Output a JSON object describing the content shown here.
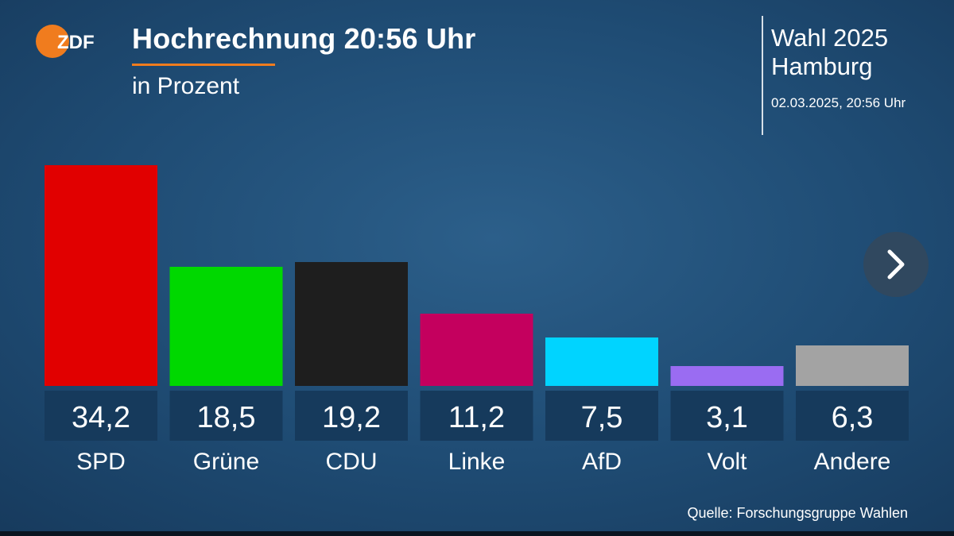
{
  "header": {
    "logo_text": "ZDF",
    "title": "Hochrechnung 20:56 Uhr",
    "subtitle": "in Prozent"
  },
  "info": {
    "line1": "Wahl 2025",
    "line2": "Hamburg",
    "date": "02.03.2025, 20:56 Uhr"
  },
  "source": "Quelle: Forschungsgruppe Wahlen",
  "next_icon": "chevron-right-icon",
  "colors": {
    "accent": "#f07c1e",
    "background": "#1f4c74",
    "value_box": "#163a5c"
  },
  "chart_data": {
    "type": "bar",
    "title": "Hochrechnung 20:56 Uhr",
    "subtitle": "in Prozent",
    "categories": [
      "SPD",
      "Grüne",
      "CDU",
      "Linke",
      "AfD",
      "Volt",
      "Andere"
    ],
    "values": [
      34.2,
      18.5,
      19.2,
      11.2,
      7.5,
      3.1,
      6.3
    ],
    "value_labels": [
      "34,2",
      "18,5",
      "19,2",
      "11,2",
      "7,5",
      "3,1",
      "6,3"
    ],
    "colors": [
      "#e10000",
      "#00d800",
      "#1e1e1e",
      "#c4005e",
      "#00d4ff",
      "#9a6cf2",
      "#a3a3a3"
    ],
    "ylim": [
      0,
      34.2
    ],
    "grid": false,
    "legend": "none"
  }
}
